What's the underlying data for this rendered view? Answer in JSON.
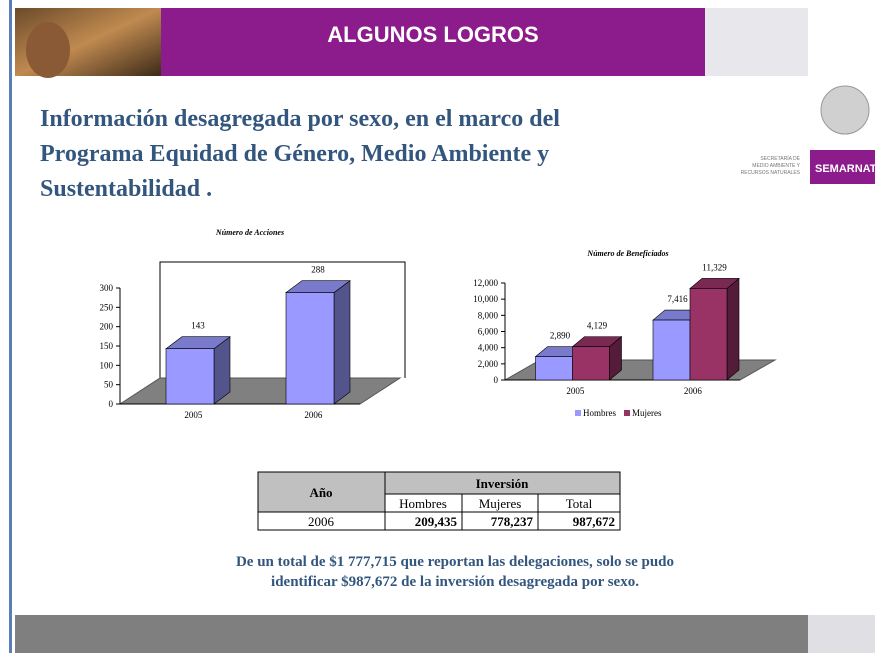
{
  "header": {
    "title": "ALGUNOS LOGROS"
  },
  "title_lines": [
    "Información desagregada por sexo, en el marco del",
    "Programa Equidad de Género, Medio Ambiente y",
    "Sustentabilidad  ."
  ],
  "logo": {
    "lines": [
      "SECRETARÍA DE",
      "MEDIO AMBIENTE Y",
      "RECURSOS NATURALES"
    ],
    "name": "SEMARNAT"
  },
  "chart_data": [
    {
      "type": "bar",
      "title": "Número de Acciones",
      "categories": [
        "2005",
        "2006"
      ],
      "values": [
        143,
        288
      ],
      "color": "#9999ff",
      "ylim": [
        0,
        300
      ],
      "yticks": [
        0,
        50,
        100,
        150,
        200,
        250,
        300
      ]
    },
    {
      "type": "bar",
      "title": "Número de Beneficiados",
      "categories": [
        "2005",
        "2006"
      ],
      "series": [
        {
          "name": "Hombres",
          "color": "#9999ff",
          "values": [
            2890,
            7416
          ],
          "value_labels": [
            "2,890",
            "7,416"
          ]
        },
        {
          "name": "Mujeres",
          "color": "#993366",
          "values": [
            4129,
            11329
          ],
          "value_labels": [
            "4,129",
            "11,329"
          ]
        }
      ],
      "ylim": [
        0,
        12000
      ],
      "yticks": [
        0,
        {
          "value": 2000,
          "label": "2,000"
        },
        {
          "value": 4000,
          "label": "4,000"
        },
        {
          "value": 6000,
          "label": "6,000"
        },
        {
          "value": 8000,
          "label": "8,000"
        },
        {
          "value": 10000,
          "label": "10,000"
        },
        {
          "value": 12000,
          "label": "12,000"
        }
      ],
      "legend": "bottom"
    }
  ],
  "table": {
    "header": [
      "Año",
      "Inversión"
    ],
    "subheader": [
      "Hombres",
      "Mujeres",
      "Total"
    ],
    "rows": [
      [
        "2006",
        "209,435",
        "778,237",
        "987,672"
      ]
    ]
  },
  "note_lines": [
    "De un total de $1 777,715 que reportan las delegaciones, solo se pudo",
    "identificar $987,672 de la inversión desagregada por sexo."
  ]
}
